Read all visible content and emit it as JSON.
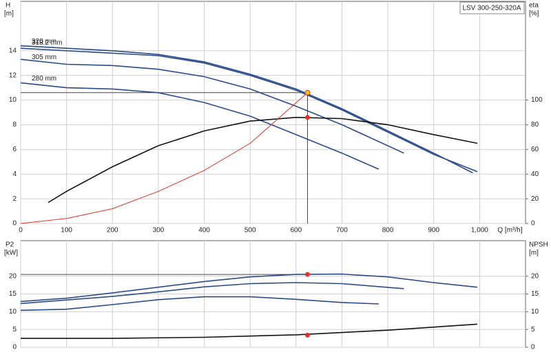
{
  "chart_data": [
    {
      "type": "line",
      "title": "LSV 300-250-320A",
      "y_label": "H",
      "y_unit": "[m]",
      "y2_label": "eta",
      "y2_unit": "[%]",
      "x_label": "Q [m³/h]",
      "xlim": [
        0,
        1100
      ],
      "xticks": [
        0,
        100,
        200,
        300,
        400,
        500,
        600,
        700,
        800,
        900,
        {
          "value": 1000,
          "label": "1,000"
        }
      ],
      "ylim": [
        0,
        18
      ],
      "yticks": [
        0,
        2,
        4,
        6,
        8,
        10,
        12,
        14
      ],
      "y2lim": [
        0,
        180
      ],
      "y2ticks": [
        0,
        20,
        40,
        60,
        80,
        100
      ],
      "grid": true,
      "series": [
        {
          "name": "320 mm",
          "color": "#2b4a8a",
          "x": [
            0,
            100,
            200,
            300,
            400,
            500,
            600,
            700,
            800,
            900,
            985
          ],
          "values": [
            14.4,
            14.2,
            14.0,
            13.7,
            13.1,
            12.1,
            10.9,
            9.3,
            7.5,
            5.7,
            4.1
          ]
        },
        {
          "name": "318.2 mm",
          "color": "#2b4a8a",
          "x": [
            0,
            150,
            300,
            400,
            500,
            600,
            700,
            800,
            900,
            995
          ],
          "values": [
            14.2,
            13.9,
            13.6,
            13.0,
            12.0,
            10.8,
            9.2,
            7.4,
            5.6,
            4.2
          ]
        },
        {
          "name": "305 mm",
          "color": "#2b4a8a",
          "x": [
            0,
            100,
            200,
            300,
            400,
            500,
            600,
            700,
            835
          ],
          "values": [
            13.3,
            12.9,
            12.8,
            12.5,
            11.9,
            10.9,
            9.5,
            8.0,
            5.7
          ]
        },
        {
          "name": "280 mm",
          "color": "#2b4a8a",
          "x": [
            0,
            100,
            200,
            300,
            400,
            500,
            600,
            700,
            780
          ],
          "values": [
            11.4,
            11.0,
            10.9,
            10.6,
            9.8,
            8.7,
            7.2,
            5.7,
            4.4
          ]
        },
        {
          "color": "#111111",
          "axis": "y2",
          "x": [
            60,
            100,
            200,
            300,
            400,
            500,
            600,
            700,
            800,
            900,
            995
          ],
          "values": [
            17,
            26,
            46,
            63,
            75,
            83,
            86,
            85,
            80,
            72,
            65
          ]
        },
        {
          "color": "#e8302a",
          "x": [
            0,
            100,
            200,
            300,
            400,
            500,
            625
          ],
          "values": [
            0,
            0.4,
            1.2,
            2.6,
            4.3,
            6.5,
            10.6
          ]
        }
      ],
      "markers": [
        {
          "x": 625,
          "y": 10.6,
          "color": "#f5c400"
        },
        {
          "x": 625,
          "y": 86,
          "axis": "y2",
          "color": "#e8302a"
        }
      ]
    },
    {
      "type": "line",
      "y_label": "P2",
      "y_unit": "[kW]",
      "y2_label": "NPSH",
      "y2_unit": "[m]",
      "xlim": [
        0,
        1100
      ],
      "xticks": [
        0,
        100,
        200,
        300,
        400,
        500,
        600,
        700,
        800,
        900,
        1000
      ],
      "ylim": [
        0,
        30
      ],
      "yticks": [
        0,
        5,
        10,
        15,
        20
      ],
      "y2lim": [
        0,
        30
      ],
      "y2ticks": [
        0,
        5,
        10,
        15,
        20
      ],
      "grid": true,
      "series": [
        {
          "color": "#2b4a8a",
          "x": [
            0,
            100,
            200,
            300,
            400,
            500,
            600,
            700,
            800,
            900,
            995
          ],
          "values": [
            12.9,
            13.8,
            15.3,
            16.9,
            18.5,
            19.8,
            20.5,
            20.6,
            19.8,
            18.2,
            16.9
          ]
        },
        {
          "color": "#2b4a8a",
          "x": [
            0,
            200,
            300,
            400,
            500,
            600,
            700,
            835
          ],
          "values": [
            12.3,
            14.3,
            15.6,
            17.0,
            17.9,
            18.2,
            17.9,
            16.5
          ]
        },
        {
          "color": "#2b4a8a",
          "x": [
            0,
            100,
            200,
            300,
            400,
            500,
            600,
            700,
            780
          ],
          "values": [
            10.4,
            10.7,
            12.0,
            13.4,
            14.2,
            14.2,
            13.5,
            12.6,
            12.2
          ]
        },
        {
          "color": "#111111",
          "axis": "y2",
          "x": [
            0,
            200,
            400,
            600,
            800,
            995
          ],
          "values": [
            2.5,
            2.5,
            2.8,
            3.5,
            4.8,
            6.5
          ]
        }
      ],
      "markers": [
        {
          "x": 625,
          "y": 20.5,
          "color": "#e8302a"
        },
        {
          "x": 625,
          "y": 3.4,
          "axis": "y2",
          "color": "#e8302a"
        }
      ]
    }
  ]
}
